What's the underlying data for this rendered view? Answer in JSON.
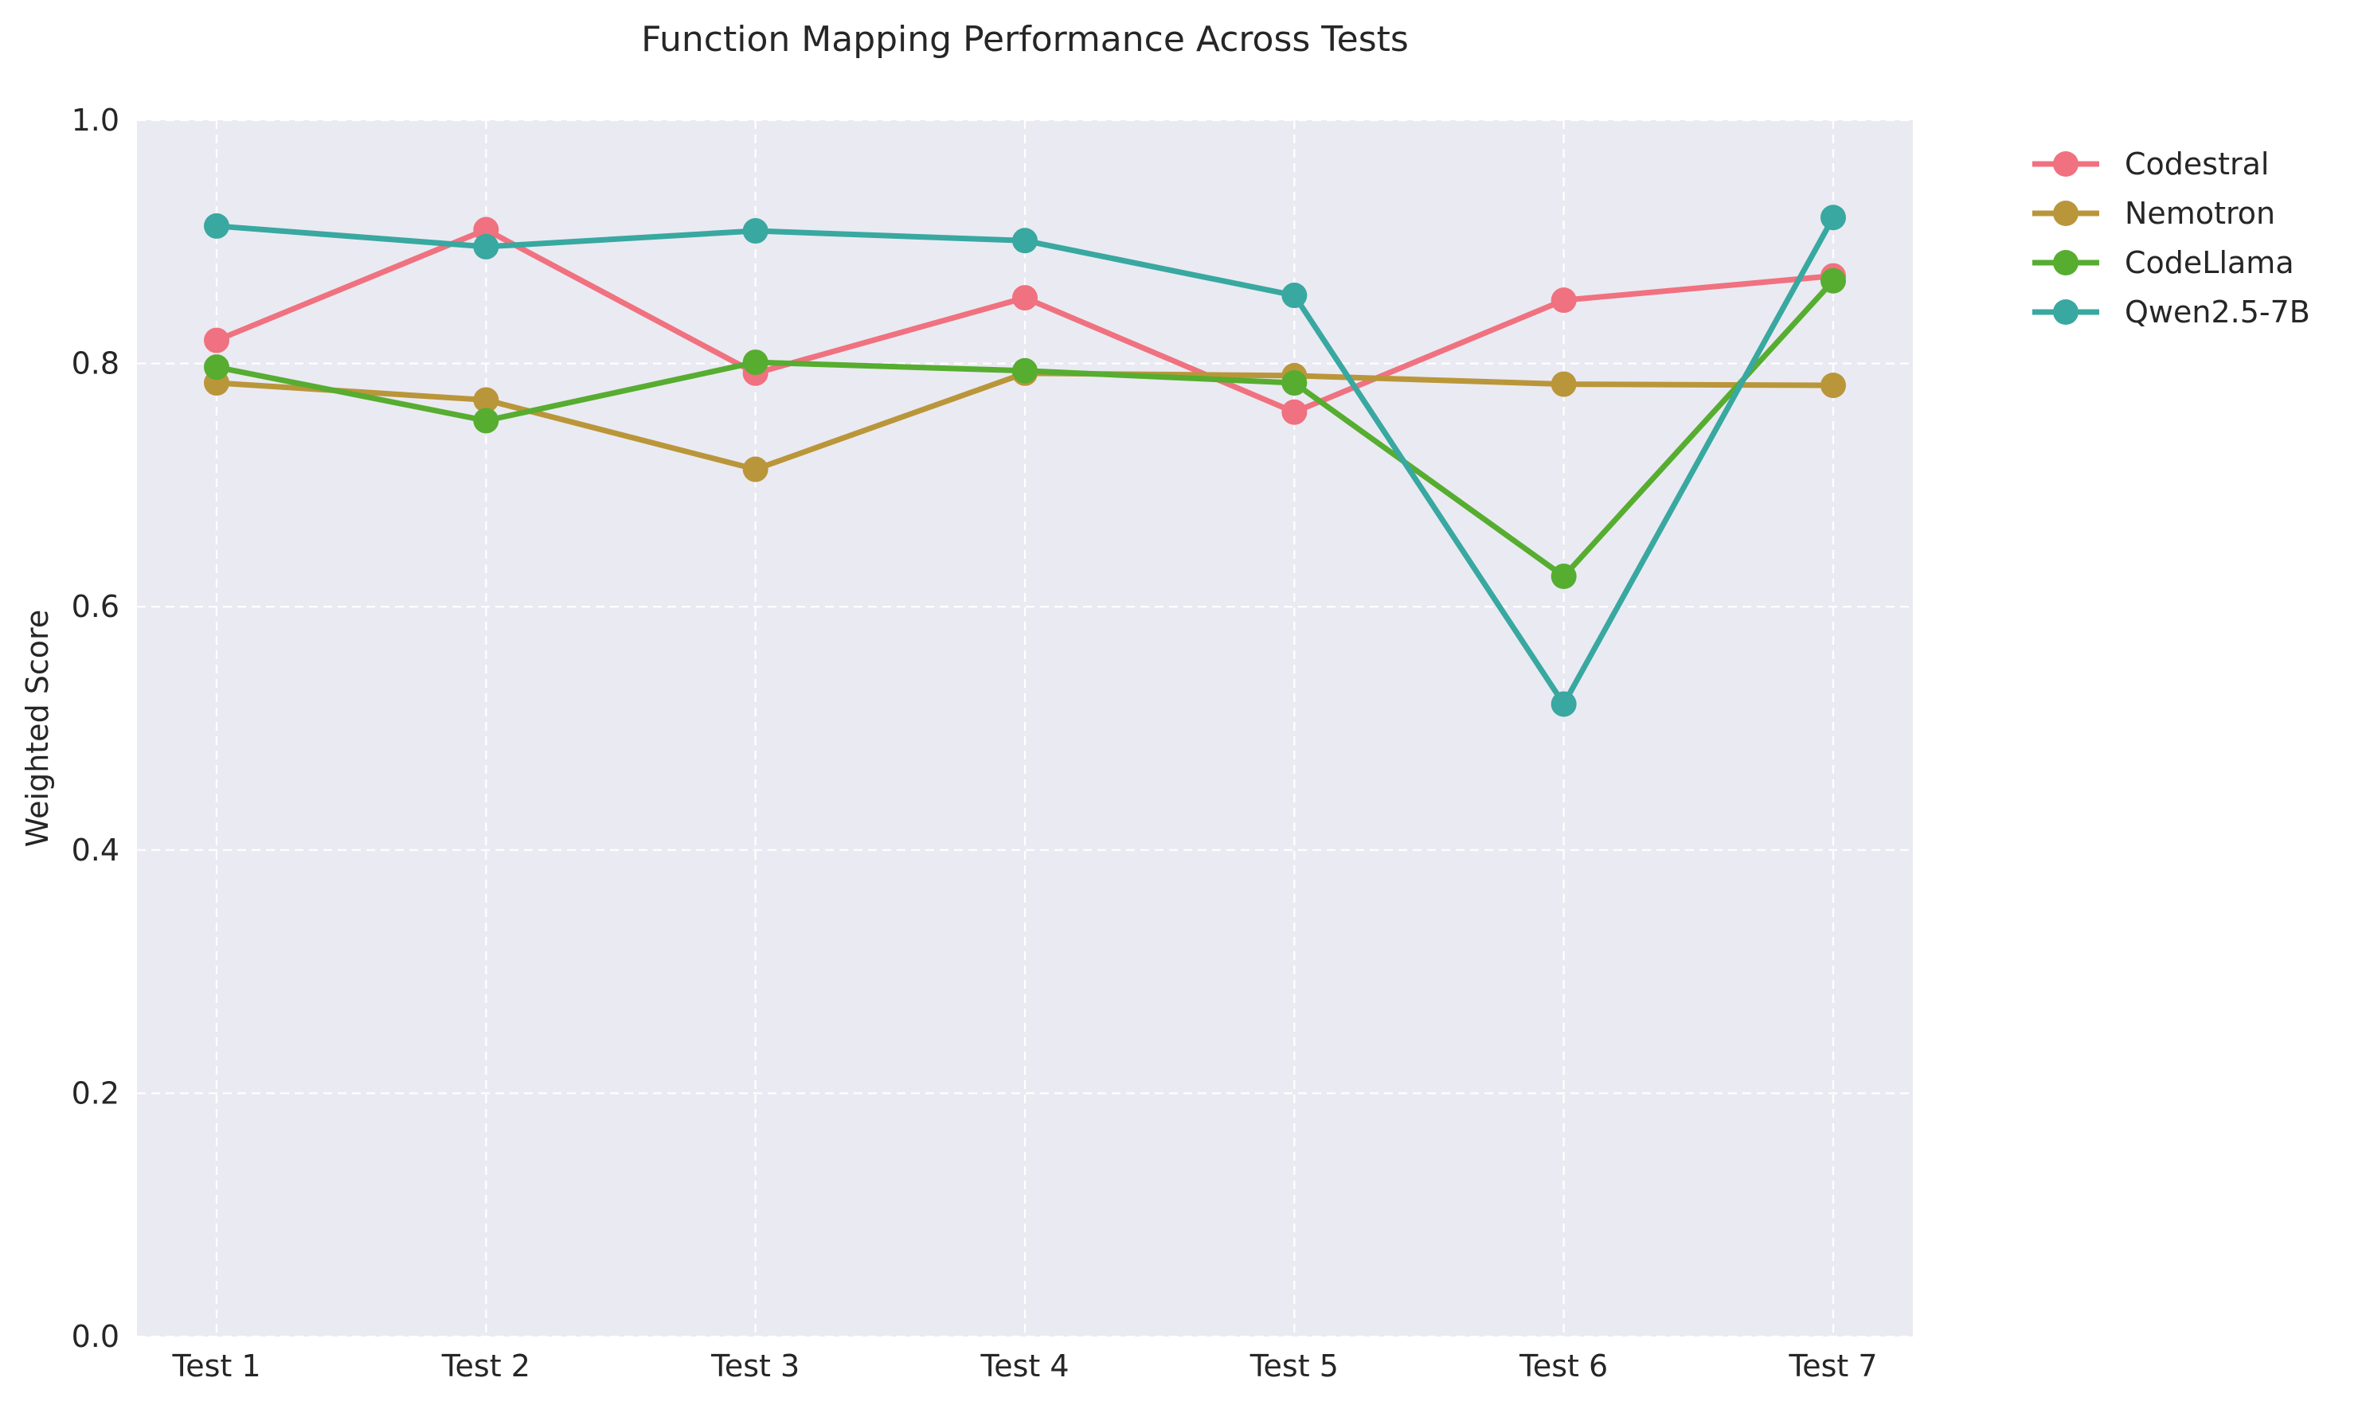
{
  "chart_data": {
    "type": "line",
    "title": "Function Mapping Performance Across Tests",
    "xlabel": "",
    "ylabel": "Weighted Score",
    "categories": [
      "Test 1",
      "Test 2",
      "Test 3",
      "Test 4",
      "Test 5",
      "Test 6",
      "Test 7"
    ],
    "ylim": [
      0.0,
      1.0
    ],
    "yticks": [
      "0.0",
      "0.2",
      "0.4",
      "0.6",
      "0.8",
      "1.0"
    ],
    "grid": true,
    "legend_position": "outside top-right",
    "background_color": "#eaeaf2",
    "series": [
      {
        "name": "Codestral",
        "color": "#f0717f",
        "values": [
          0.819,
          0.91,
          0.792,
          0.854,
          0.76,
          0.852,
          0.872
        ]
      },
      {
        "name": "Nemotron",
        "color": "#ba963a",
        "values": [
          0.784,
          0.77,
          0.713,
          0.792,
          0.79,
          0.783,
          0.782
        ]
      },
      {
        "name": "CodeLlama",
        "color": "#56ad30",
        "values": [
          0.797,
          0.753,
          0.801,
          0.794,
          0.784,
          0.625,
          0.868
        ]
      },
      {
        "name": "Qwen2.5-7B",
        "color": "#38a8a0",
        "values": [
          0.913,
          0.896,
          0.909,
          0.901,
          0.856,
          0.52,
          0.92
        ]
      }
    ]
  }
}
